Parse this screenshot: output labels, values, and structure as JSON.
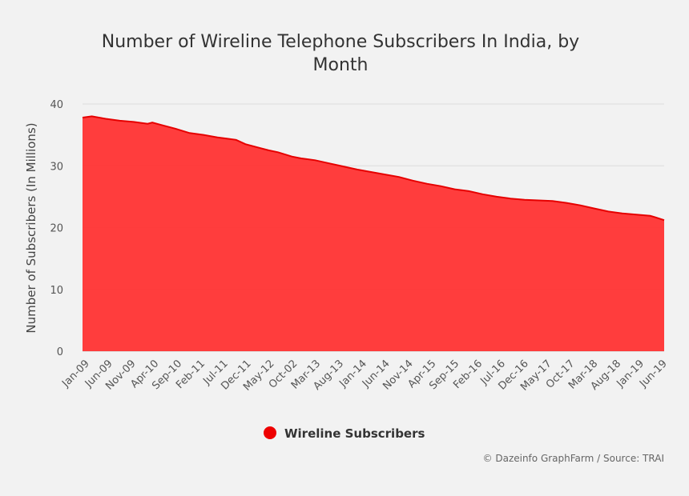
{
  "chart_data": {
    "type": "area",
    "title": "Number of Wireline Telephone Subscribers In India, by Month",
    "title_lines": [
      "Number of Wireline Telephone Subscribers In India, by",
      "Month"
    ],
    "ylabel": "Number of Subscribers (In Millions)",
    "xlabel": "",
    "ylim": [
      0,
      40
    ],
    "yticks": [
      0,
      10,
      20,
      30,
      40
    ],
    "grid": true,
    "legend_position": "bottom-center",
    "color": "#ff3333",
    "line_color": "#e60000",
    "x_tick_labels": [
      "Jan-09",
      "Jun-09",
      "Nov-09",
      "Apr-10",
      "Sep-10",
      "Feb-11",
      "Jul-11",
      "Dec-11",
      "May-12",
      "Oct-02",
      "Mar-13",
      "Aug-13",
      "Jan-14",
      "Jun-14",
      "Nov-14",
      "Apr-15",
      "Sep-15",
      "Feb-16",
      "Jul-16",
      "Dec-16",
      "May-17",
      "Oct-17",
      "Mar-18",
      "Aug-18",
      "Jan-19",
      "Jun-19"
    ],
    "series": [
      {
        "name": "Wireline Subscribers",
        "x": [
          "2009-01",
          "2009-03",
          "2009-06",
          "2009-09",
          "2009-12",
          "2010-03",
          "2010-04",
          "2010-06",
          "2010-09",
          "2010-12",
          "2011-03",
          "2011-06",
          "2011-08",
          "2011-10",
          "2011-12",
          "2012-03",
          "2012-05",
          "2012-07",
          "2012-10",
          "2012-12",
          "2013-03",
          "2013-06",
          "2013-09",
          "2013-12",
          "2014-03",
          "2014-06",
          "2014-09",
          "2014-12",
          "2015-03",
          "2015-06",
          "2015-09",
          "2015-12",
          "2016-03",
          "2016-06",
          "2016-09",
          "2016-12",
          "2017-03",
          "2017-06",
          "2017-09",
          "2017-12",
          "2018-03",
          "2018-06",
          "2018-09",
          "2018-12",
          "2019-03",
          "2019-04",
          "2019-06"
        ],
        "values": [
          37.8,
          38.0,
          37.6,
          37.3,
          37.1,
          36.8,
          37.0,
          36.6,
          36.0,
          35.3,
          35.0,
          34.6,
          34.4,
          34.2,
          33.5,
          32.9,
          32.5,
          32.2,
          31.5,
          31.2,
          30.9,
          30.4,
          29.9,
          29.4,
          29.0,
          28.6,
          28.2,
          27.6,
          27.1,
          26.7,
          26.2,
          25.9,
          25.4,
          25.0,
          24.7,
          24.5,
          24.4,
          24.3,
          24.0,
          23.6,
          23.1,
          22.6,
          22.3,
          22.1,
          21.9,
          21.7,
          21.2
        ]
      }
    ]
  },
  "legend": {
    "label": "Wireline Subscribers"
  },
  "credit": "© Dazeinfo GraphFarm / Source: TRAI"
}
